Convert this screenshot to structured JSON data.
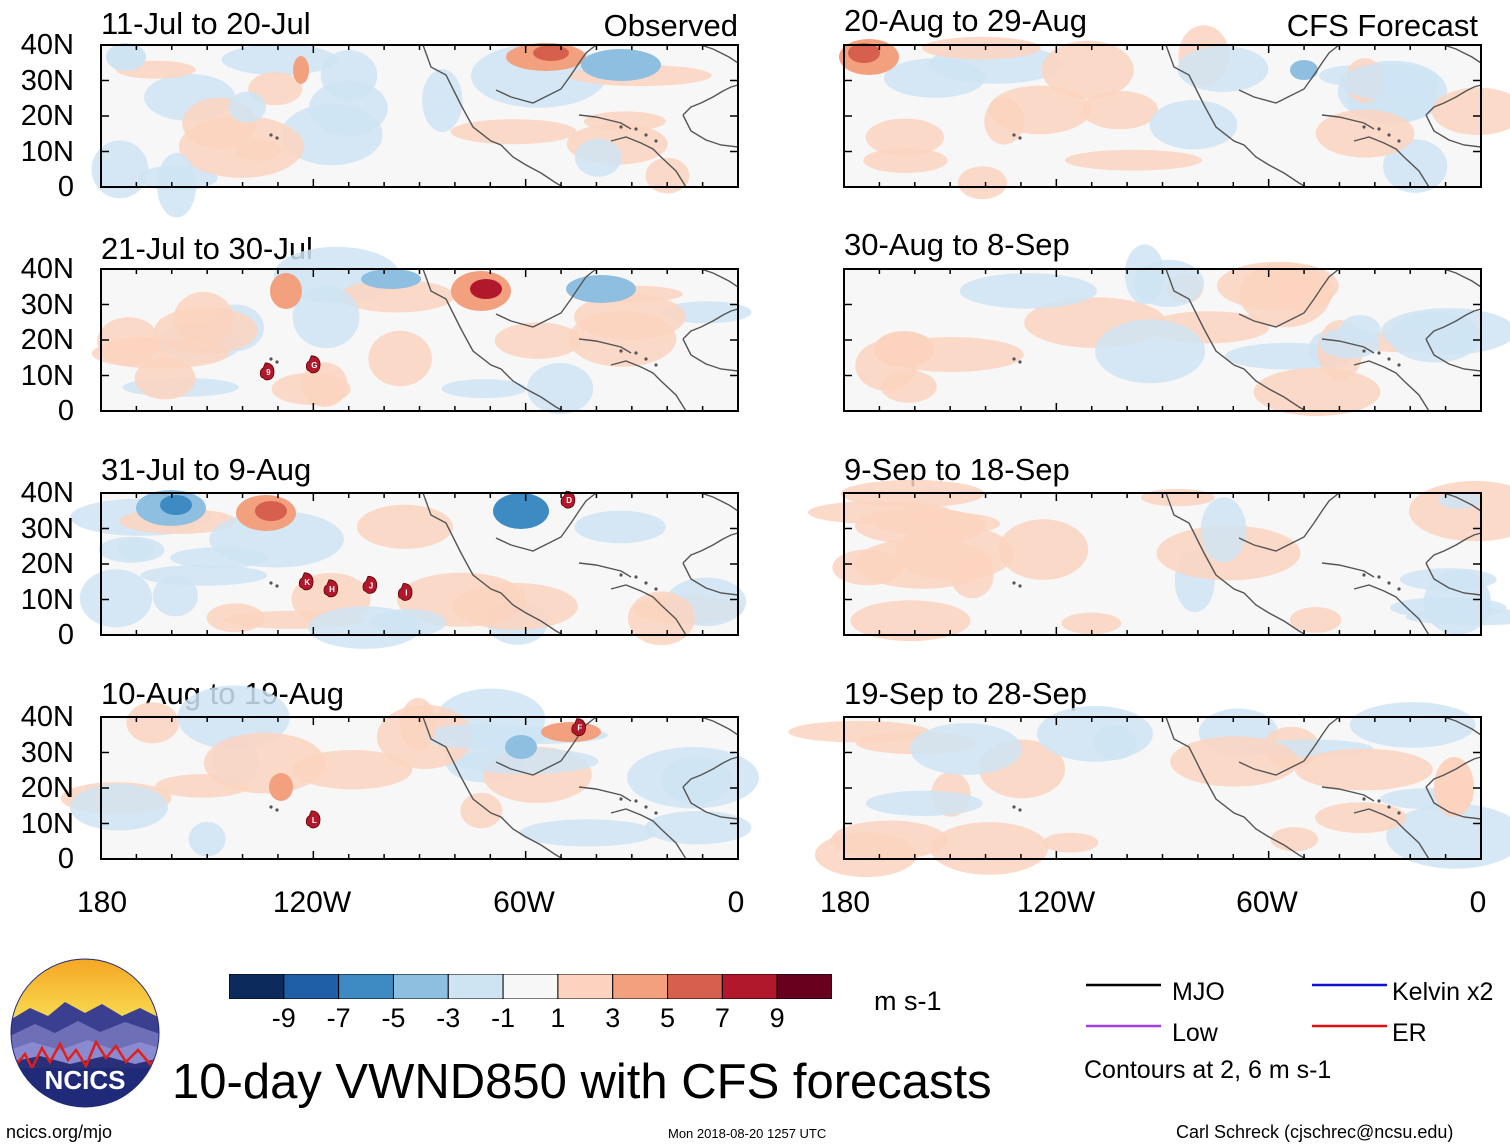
{
  "chart_data": {
    "type": "heatmap",
    "title": "10-day VWND850 with CFS forecasts",
    "variable": "VWND850",
    "units": "m s-1",
    "x_axis": {
      "ticks": [
        "180",
        "120W",
        "60W",
        "0"
      ],
      "range": [
        -180,
        0
      ]
    },
    "y_axis": {
      "ticks": [
        "40N",
        "30N",
        "20N",
        "10N",
        "0"
      ],
      "range": [
        0,
        40
      ]
    },
    "colorbar": {
      "labels": [
        "-9",
        "-7",
        "-5",
        "-3",
        "-1",
        "1",
        "3",
        "5",
        "7",
        "9"
      ],
      "colors": [
        "#0d2a5c",
        "#1f5fa8",
        "#3e8bc4",
        "#8ebfe0",
        "#cfe4f3",
        "#f7f7f7",
        "#fbd3bf",
        "#f2a07e",
        "#d6604d",
        "#b2182b",
        "#67001f"
      ]
    },
    "panels_observed": [
      {
        "title": "11-Jul to 20-Jul",
        "tag": "Observed",
        "storms": []
      },
      {
        "title": "21-Jul to 30-Jul",
        "tag": "",
        "storms": [
          {
            "label": "9",
            "lon": -133,
            "lat": 11
          },
          {
            "label": "G",
            "lon": -120,
            "lat": 13
          }
        ]
      },
      {
        "title": "31-Jul to 9-Aug",
        "tag": "",
        "storms": [
          {
            "label": "D",
            "lon": -48,
            "lat": 38
          },
          {
            "label": "K",
            "lon": -122,
            "lat": 15
          },
          {
            "label": "H",
            "lon": -115,
            "lat": 13
          },
          {
            "label": "J",
            "lon": -104,
            "lat": 14
          },
          {
            "label": "I",
            "lon": -94,
            "lat": 12
          }
        ]
      },
      {
        "title": "10-Aug to 19-Aug",
        "tag": "",
        "storms": [
          {
            "label": "F",
            "lon": -45,
            "lat": 37
          },
          {
            "label": "L",
            "lon": -120,
            "lat": 11
          }
        ]
      }
    ],
    "panels_forecast": [
      {
        "title": "20-Aug to 29-Aug",
        "tag": "CFS Forecast",
        "storms": []
      },
      {
        "title": "30-Aug to 8-Sep",
        "tag": "",
        "storms": []
      },
      {
        "title": "9-Sep to 18-Sep",
        "tag": "",
        "storms": []
      },
      {
        "title": "19-Sep to 28-Sep",
        "tag": "",
        "storms": []
      }
    ],
    "legend": [
      {
        "label": "MJO",
        "color": "#000000"
      },
      {
        "label": "Kelvin x2",
        "color": "#1010d0"
      },
      {
        "label": "Low",
        "color": "#a040e0"
      },
      {
        "label": "ER",
        "color": "#e01010"
      }
    ],
    "contour_note": "Contours at 2, 6 m s-1"
  },
  "branding": {
    "logo_text": "NCICS",
    "site": "ncics.org/mjo",
    "timestamp": "Mon 2018-08-20 1257 UTC",
    "author": "Carl Schreck (cjschrec@ncsu.edu)"
  }
}
